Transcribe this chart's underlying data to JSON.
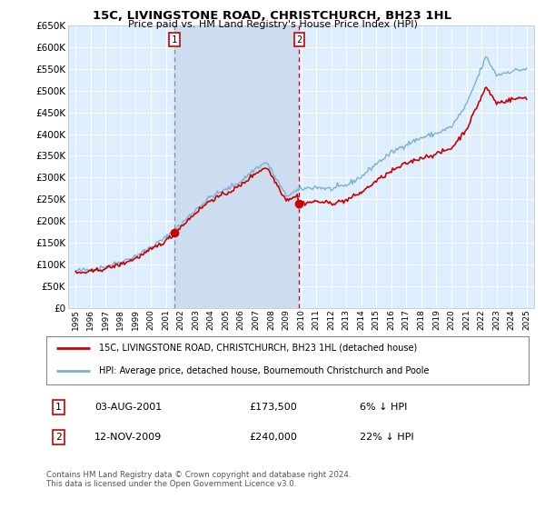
{
  "title": "15C, LIVINGSTONE ROAD, CHRISTCHURCH, BH23 1HL",
  "subtitle": "Price paid vs. HM Land Registry's House Price Index (HPI)",
  "legend_property": "15C, LIVINGSTONE ROAD, CHRISTCHURCH, BH23 1HL (detached house)",
  "legend_hpi": "HPI: Average price, detached house, Bournemouth Christchurch and Poole",
  "footer": "Contains HM Land Registry data © Crown copyright and database right 2024.\nThis data is licensed under the Open Government Licence v3.0.",
  "annotation1_label": "1",
  "annotation1_date": "03-AUG-2001",
  "annotation1_price": "£173,500",
  "annotation1_hpi": "6% ↓ HPI",
  "annotation1_year": 2001.58,
  "annotation2_label": "2",
  "annotation2_date": "12-NOV-2009",
  "annotation2_price": "£240,000",
  "annotation2_hpi": "22% ↓ HPI",
  "annotation2_year": 2009.87,
  "ymin": 0,
  "ymax": 650000,
  "ytick_step": 50000,
  "property_color": "#cc0000",
  "hpi_color": "#7ab0d4",
  "vline1_color": "#888888",
  "vline2_color": "#cc0000",
  "bg_color": "#ddeeff",
  "highlight_color": "#ccddf0",
  "grid_color": "#ffffff",
  "sale1_value": 173500,
  "sale2_value": 240000,
  "xmin": 1994.5,
  "xmax": 2025.5
}
